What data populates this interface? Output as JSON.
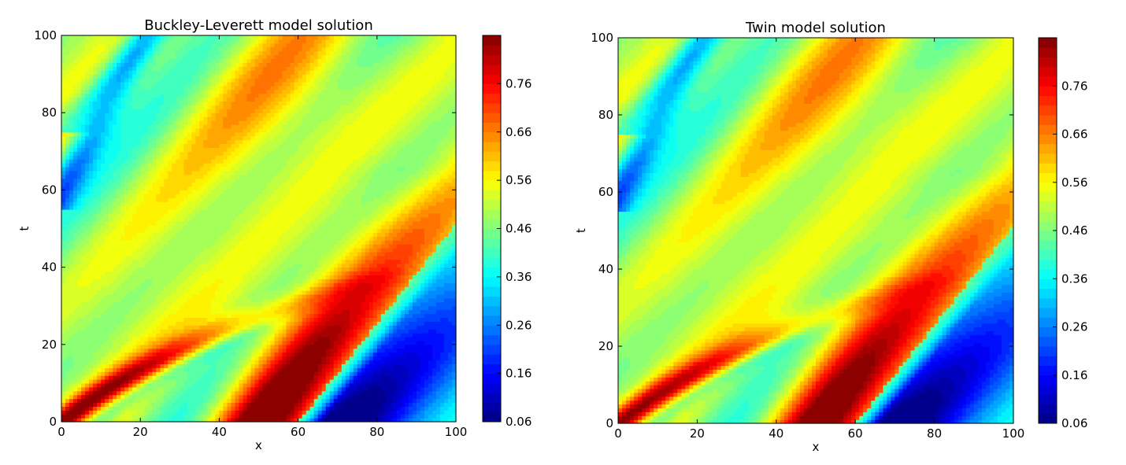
{
  "chart_data": [
    {
      "type": "heatmap",
      "subtype": "filled-contour",
      "title": "Buckley-Leverett model solution",
      "xlabel": "x",
      "ylabel": "t",
      "xlim": [
        0,
        100
      ],
      "ylim": [
        0,
        100
      ],
      "x_ticks": [
        "0",
        "20",
        "40",
        "60",
        "80",
        "100"
      ],
      "y_ticks": [
        "0",
        "20",
        "40",
        "60",
        "80",
        "100"
      ],
      "colorbar": {
        "range": [
          0.06,
          0.86
        ],
        "ticks": [
          "0.06",
          "0.16",
          "0.26",
          "0.36",
          "0.46",
          "0.56",
          "0.66",
          "0.76"
        ],
        "levels": 40,
        "colormap": "jet"
      },
      "features": [
        {
          "t": 0,
          "x_range": [
            0,
            12
          ],
          "level": 0.84
        },
        {
          "t": 0,
          "x_range": [
            34,
            62
          ],
          "level": 0.86
        },
        {
          "t": 0,
          "x_range": [
            64,
            80
          ],
          "level": 0.06
        },
        {
          "t": 20,
          "x_range": [
            77,
            88
          ],
          "level": 0.1
        },
        {
          "t": 60,
          "x_range": [
            0,
            5
          ],
          "level": 0.3
        },
        {
          "t": 80,
          "x_range": [
            40,
            80
          ],
          "level": 0.55
        }
      ]
    },
    {
      "type": "heatmap",
      "subtype": "filled-contour",
      "title": "Twin model solution",
      "xlabel": "x",
      "ylabel": "t",
      "xlim": [
        0,
        100
      ],
      "ylim": [
        0,
        100
      ],
      "x_ticks": [
        "0",
        "20",
        "40",
        "60",
        "80",
        "100"
      ],
      "y_ticks": [
        "0",
        "20",
        "40",
        "60",
        "80",
        "100"
      ],
      "colorbar": {
        "range": [
          0.06,
          0.86
        ],
        "ticks": [
          "0.06",
          "0.16",
          "0.26",
          "0.36",
          "0.46",
          "0.56",
          "0.66",
          "0.76"
        ],
        "levels": 40,
        "colormap": "jet"
      },
      "features": [
        {
          "t": 0,
          "x_range": [
            0,
            12
          ],
          "level": 0.8
        },
        {
          "t": 0,
          "x_range": [
            38,
            61
          ],
          "level": 0.84
        },
        {
          "t": 0,
          "x_range": [
            63,
            80
          ],
          "level": 0.06
        },
        {
          "t": 20,
          "x_range": [
            77,
            88
          ],
          "level": 0.1
        },
        {
          "t": 60,
          "x_range": [
            0,
            5
          ],
          "level": 0.3
        },
        {
          "t": 80,
          "x_range": [
            40,
            80
          ],
          "level": 0.55
        }
      ]
    }
  ]
}
